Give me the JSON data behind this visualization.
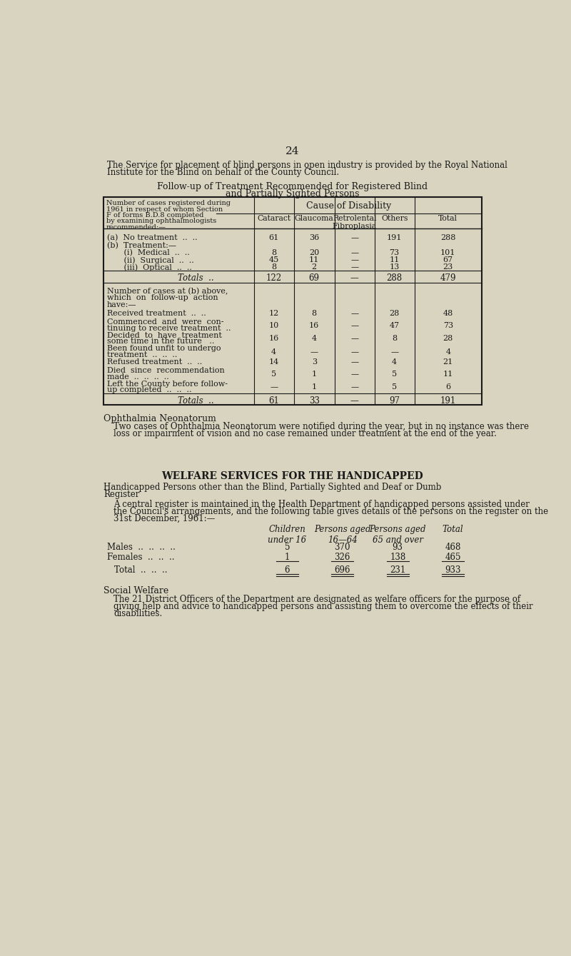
{
  "bg_color": "#d8d4c0",
  "text_color": "#1a1a1a",
  "page_number": "24",
  "intro_text_1": "The Service for placement of blind persons in open industry is provided by the Royal National",
  "intro_text_2": "Institute for the Blind on behalf of the County Council.",
  "table1_title_line1": "Follow-up of Treatment Recommended for Registered Blind",
  "table1_title_line2": "and Partially Sighted Persons",
  "table1_header_left_lines": [
    "Number of cases registered during",
    "1961 in respect of whom Section",
    "F of forms B.D.8 completed",
    "by examining ophthalmologists",
    "recommended:—"
  ],
  "cause_of_disability": "Cause of Disability",
  "col_headers": [
    "Cataract",
    "Glaucoma",
    "Retrolental\nFibroplasia",
    "Others",
    "Total"
  ],
  "row_a_label": "(a)  No treatment  ..  ..",
  "row_a_vals": [
    "61",
    "36",
    "—",
    "191",
    "288"
  ],
  "row_b_label": "(b)  Treatment:—",
  "row_bi_label": "     (i)  Medical  ..  ..",
  "row_bi_vals": [
    "8",
    "20",
    "—",
    "73",
    "101"
  ],
  "row_bii_label": "     (ii)  Surgical  ..  ..",
  "row_bii_vals": [
    "45",
    "11",
    "—",
    "11",
    "67"
  ],
  "row_biii_label": "     (iii)  Optical  ..  ..",
  "row_biii_vals": [
    "8",
    "2",
    "—",
    "13",
    "23"
  ],
  "totals1_label": "Totals  ..",
  "totals1_vals": [
    "122",
    "69",
    "—",
    "288",
    "479"
  ],
  "sec2_header": [
    "Number of cases at (b) above,",
    "which  on  follow-up  action",
    "have:—"
  ],
  "s2_rows": [
    {
      "label1": "Received treatment  ..  ..",
      "label2": "",
      "vals": [
        "12",
        "8",
        "—",
        "28",
        "48"
      ]
    },
    {
      "label1": "Commenced  and  were  con-",
      "label2": "tinuing to receive treatment  ..",
      "vals": [
        "10",
        "16",
        "—",
        "47",
        "73"
      ]
    },
    {
      "label1": "Decided  to  have  treatment",
      "label2": "some time in the future   ..",
      "vals": [
        "16",
        "4",
        "—",
        "8",
        "28"
      ]
    },
    {
      "label1": "Been found unfit to undergo",
      "label2": "treatment  ..  ..  ..",
      "vals": [
        "4",
        "—",
        "—",
        "—",
        "4"
      ]
    },
    {
      "label1": "Refused treatment  ..  ..",
      "label2": "",
      "vals": [
        "14",
        "3",
        "—",
        "4",
        "21"
      ]
    },
    {
      "label1": "Died  since  recommendation",
      "label2": "made  ..  ..  ..  ..",
      "vals": [
        "5",
        "1",
        "—",
        "5",
        "11"
      ]
    },
    {
      "label1": "Left the County before follow-",
      "label2": "up completed  ..  ..  ..",
      "vals": [
        "—",
        "1",
        "—",
        "5",
        "6"
      ]
    }
  ],
  "totals2_label": "Totals  ..",
  "totals2_vals": [
    "61",
    "33",
    "—",
    "97",
    "191"
  ],
  "ophthalmia_title": "Ophthalmia Neonatorum",
  "ophthalmia_text1": "Two cases of Ophthalmia Neonatorum were notified during the year, but in no instance was there",
  "ophthalmia_text2": "loss or impairment of vision and no case remained under treatment at the end of the year.",
  "welfare_title": "WELFARE SERVICES FOR THE HANDICAPPED",
  "handicapped_title1": "Handicapped Persons other than the Blind, Partially Sighted and Deaf or Dumb",
  "handicapped_title2": "Register",
  "handicapped_text1": "A central register is maintained in the Health Department of handicapped persons assisted under",
  "handicapped_text2": "the Council's arrangements, and the following table gives details of the persons on the register on the",
  "handicapped_text3": "31st December, 1961:—",
  "t2_col_headers": [
    "Children\nunder 16",
    "Persons aged\n16—64",
    "Persons aged\n65 and over",
    "Total"
  ],
  "t2_males_label": "Males  ..  ..  ..  ..",
  "t2_males_vals": [
    "5",
    "370",
    "93",
    "468"
  ],
  "t2_females_label": "Females  ..  ..  ..",
  "t2_females_vals": [
    "1",
    "326",
    "138",
    "465"
  ],
  "t2_total_label": "Total  ..  ..  ..",
  "t2_total_vals": [
    "6",
    "696",
    "231",
    "933"
  ],
  "social_welfare_title": "Social Welfare",
  "social_welfare_text1": "The 21 District Officers of the Department are designated as welfare officers for the purpose of",
  "social_welfare_text2": "giving help and advice to handicapped persons and assisting them to overcome the effects of their",
  "social_welfare_text3": "disabilities."
}
